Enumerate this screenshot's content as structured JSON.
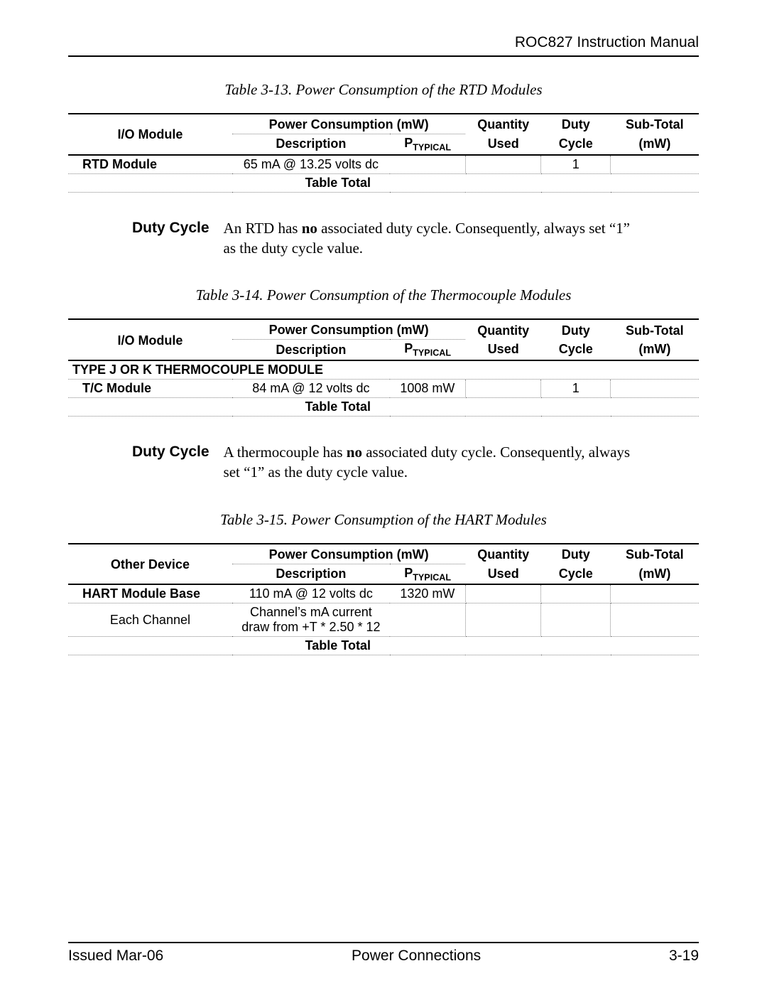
{
  "header": {
    "title": "ROC827 Instruction Manual"
  },
  "footer": {
    "left": "Issued Mar-06",
    "center": "Power Connections",
    "right": "3-19"
  },
  "common_headers": {
    "power_consumption": "Power Consumption (mW)",
    "description": "Description",
    "ptypical_prefix": "P",
    "ptypical_sub": "TYPICAL",
    "quantity_used_top": "Quantity",
    "quantity_used_bot": "Used",
    "duty_cycle_top": "Duty",
    "duty_cycle_bot": "Cycle",
    "subtotal_top": "Sub-Total",
    "subtotal_bot": "(mW)",
    "table_total": "Table Total"
  },
  "table13": {
    "caption": "Table 3-13. Power Consumption of the RTD Modules",
    "col1_header": "I/O Module",
    "rows": [
      {
        "module": "RTD Module",
        "description": "65 mA @ 13.25 volts dc",
        "ptypical": "",
        "qty": "",
        "duty": "1",
        "sub": ""
      }
    ]
  },
  "duty13": {
    "label": "Duty Cycle",
    "text_before": "An RTD has ",
    "text_bold": "no",
    "text_after": " associated duty cycle. Consequently, always set “1” as the duty cycle value."
  },
  "table14": {
    "caption": "Table 3-14. Power Consumption of the Thermocouple Modules",
    "col1_header": "I/O Module",
    "section": "TYPE J OR K THERMOCOUPLE MODULE",
    "rows": [
      {
        "module": "T/C Module",
        "description": "84 mA @ 12 volts dc",
        "ptypical": "1008 mW",
        "qty": "",
        "duty": "1",
        "sub": ""
      }
    ]
  },
  "duty14": {
    "label": "Duty Cycle",
    "text_before": "A thermocouple has ",
    "text_bold": "no",
    "text_after": " associated duty cycle. Consequently, always set “1” as the duty cycle value."
  },
  "table15": {
    "caption": "Table 3-15. Power Consumption of the HART Modules",
    "col1_header": "Other Device",
    "rows": [
      {
        "module": "HART Module Base",
        "description": "110 mA @ 12 volts dc",
        "ptypical": "1320 mW",
        "qty": "",
        "duty": "",
        "sub": ""
      },
      {
        "module": "Each Channel",
        "description": "Channel’s mA current draw from +T * 2.50 * 12",
        "ptypical": "",
        "qty": "",
        "duty": "",
        "sub": ""
      }
    ]
  }
}
